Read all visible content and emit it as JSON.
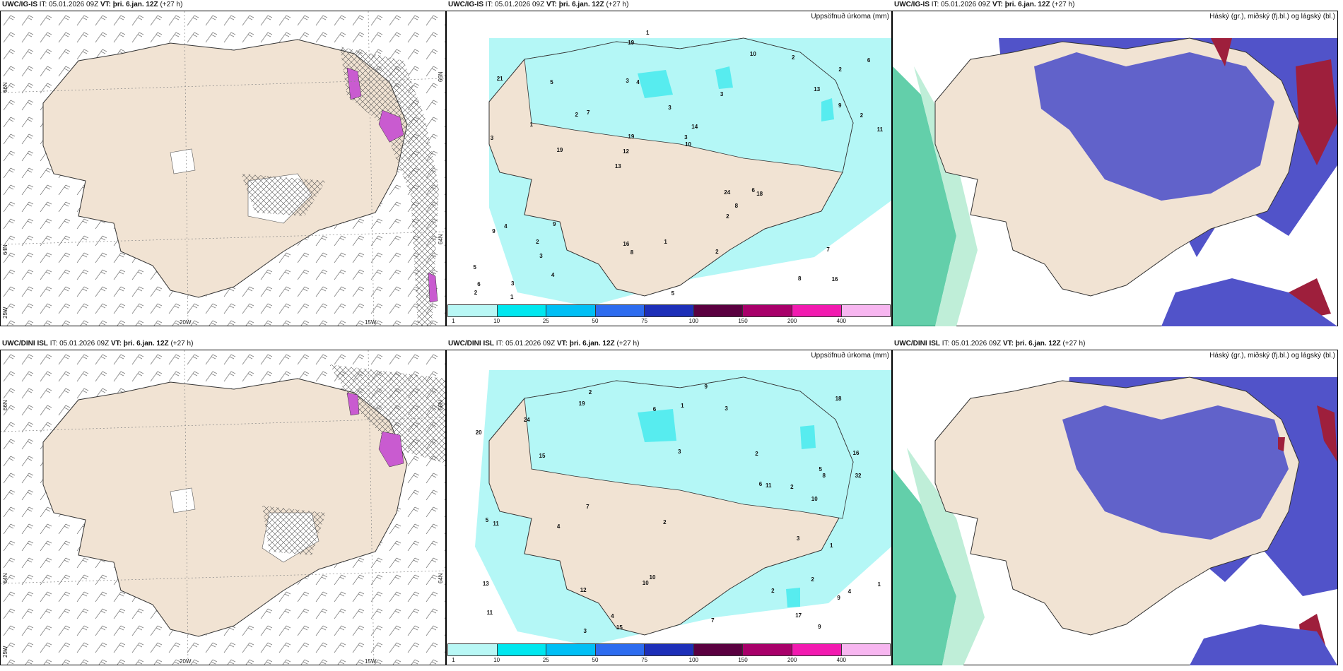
{
  "rows": [
    {
      "model": "UWC/IG-IS",
      "it_label": "IT:",
      "it_value": "05.01.2026 09Z",
      "vt_label": "VT:",
      "vt_value": "þri. 6.jan. 12Z",
      "lead": "(+27 h)",
      "precip_title": "Uppsöfnuð úrkoma (mm)",
      "cloud_title": "Háský (gr.), miðský (fj.bl.) og lágský (bl.)"
    },
    {
      "model": "UWC/DINI ISL",
      "it_label": "IT:",
      "it_value": "05.01.2026 09Z",
      "vt_label": "VT:",
      "vt_value": "þri. 6.jan. 12Z",
      "lead": "(+27 h)",
      "precip_title": "Uppsöfnuð úrkoma (mm)",
      "cloud_title": "Háský (gr.), miðský (fj.bl.) og lágský (bl.)"
    }
  ],
  "wind_map": {
    "lat_labels": [
      "66N",
      "64N",
      "25W"
    ],
    "lon_labels": [
      "20W",
      "15W"
    ],
    "right_lat_labels": [
      "66N",
      "64N"
    ]
  },
  "colorbar": {
    "labels": [
      "1",
      "10",
      "25",
      "50",
      "75",
      "100",
      "150",
      "200",
      "400"
    ],
    "colors": [
      "#b8f7f5",
      "#00e7ef",
      "#00bff5",
      "#2d6cef",
      "#1d2fb8",
      "#5a0040",
      "#a8006a",
      "#f21ab0",
      "#f7b6f0"
    ]
  },
  "colors": {
    "land": "#f1e3d3",
    "precip_light": "#b4f7f6",
    "precip_mid": "#57ecef",
    "cloud_blue": "#5153c9",
    "cloud_light": "#6ad0f0",
    "cloud_red": "#9e1f3c",
    "cloud_green": "#2fbf8e",
    "hatch_pink": "#c95bd0"
  },
  "precip_numbers_top": [
    "16",
    "3",
    "2",
    "13",
    "3",
    "3",
    "3",
    "3",
    "4",
    "7",
    "5",
    "3",
    "4",
    "14",
    "18",
    "21",
    "19",
    "11",
    "24",
    "9",
    "12",
    "16",
    "19",
    "5",
    "10",
    "9",
    "8",
    "7",
    "6",
    "5",
    "2",
    "1",
    "2",
    "4",
    "2",
    "3",
    "6",
    "8",
    "10",
    "9",
    "13",
    "6",
    "8",
    "2",
    "2",
    "1",
    "2",
    "1",
    "2",
    "1",
    "19"
  ],
  "precip_numbers_bottom": [
    "2",
    "16",
    "4",
    "3",
    "11",
    "2",
    "5",
    "12",
    "18",
    "15",
    "32",
    "20",
    "10",
    "15",
    "13",
    "24",
    "9",
    "19",
    "10",
    "8",
    "5",
    "11",
    "7",
    "6",
    "4",
    "10",
    "9",
    "3",
    "2",
    "1",
    "4",
    "2",
    "3",
    "2",
    "1",
    "17",
    "11",
    "6",
    "9",
    "7",
    "3",
    "2",
    "1"
  ]
}
